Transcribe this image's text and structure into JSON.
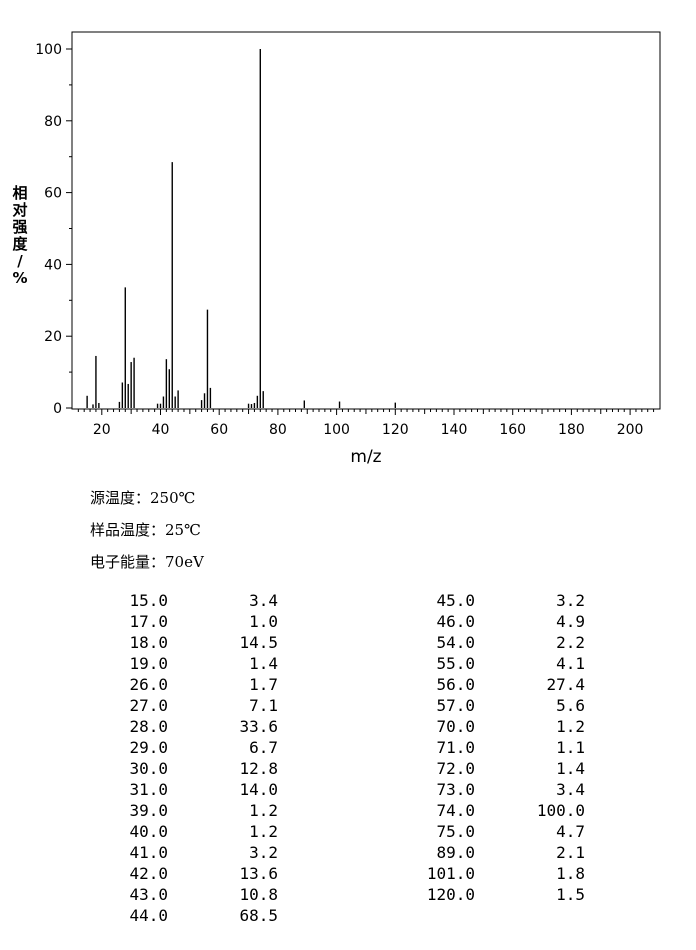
{
  "chart_data": {
    "type": "bar",
    "xlabel": "m/z",
    "ylabel": "相对强度/%",
    "xlim": [
      10,
      210
    ],
    "ylim": [
      0,
      105
    ],
    "x_ticks": [
      20,
      40,
      60,
      80,
      100,
      120,
      140,
      160,
      180,
      200
    ],
    "y_ticks": [
      0,
      20,
      40,
      60,
      80,
      100
    ],
    "grid": false,
    "series": [
      {
        "x": [
          15,
          17,
          18,
          19,
          26,
          27,
          28,
          29,
          30,
          31,
          39,
          40,
          41,
          42,
          43,
          44,
          45,
          46,
          54,
          55,
          56,
          57,
          70,
          71,
          72,
          73,
          74,
          75,
          89,
          101,
          120
        ],
        "values": [
          3.4,
          1.0,
          14.5,
          1.4,
          1.7,
          7.1,
          33.6,
          6.7,
          12.8,
          14.0,
          1.2,
          1.2,
          3.2,
          13.6,
          10.8,
          68.5,
          3.2,
          4.9,
          2.2,
          4.1,
          27.4,
          5.6,
          1.2,
          1.1,
          1.4,
          3.4,
          100.0,
          4.7,
          2.1,
          1.8,
          1.5
        ]
      }
    ]
  },
  "conditions": {
    "source_temp": "源温度：250℃",
    "sample_temp": "样品温度：25℃",
    "electron_energy": "电子能量：70eV"
  },
  "peak_table": {
    "left": [
      [
        "15.0",
        "3.4"
      ],
      [
        "17.0",
        "1.0"
      ],
      [
        "18.0",
        "14.5"
      ],
      [
        "19.0",
        "1.4"
      ],
      [
        "26.0",
        "1.7"
      ],
      [
        "27.0",
        "7.1"
      ],
      [
        "28.0",
        "33.6"
      ],
      [
        "29.0",
        "6.7"
      ],
      [
        "30.0",
        "12.8"
      ],
      [
        "31.0",
        "14.0"
      ],
      [
        "39.0",
        "1.2"
      ],
      [
        "40.0",
        "1.2"
      ],
      [
        "41.0",
        "3.2"
      ],
      [
        "42.0",
        "13.6"
      ],
      [
        "43.0",
        "10.8"
      ],
      [
        "44.0",
        "68.5"
      ]
    ],
    "right": [
      [
        "45.0",
        "3.2"
      ],
      [
        "46.0",
        "4.9"
      ],
      [
        "54.0",
        "2.2"
      ],
      [
        "55.0",
        "4.1"
      ],
      [
        "56.0",
        "27.4"
      ],
      [
        "57.0",
        "5.6"
      ],
      [
        "70.0",
        "1.2"
      ],
      [
        "71.0",
        "1.1"
      ],
      [
        "72.0",
        "1.4"
      ],
      [
        "73.0",
        "3.4"
      ],
      [
        "74.0",
        "100.0"
      ],
      [
        "75.0",
        "4.7"
      ],
      [
        "89.0",
        "2.1"
      ],
      [
        "101.0",
        "1.8"
      ],
      [
        "120.0",
        "1.5"
      ]
    ]
  }
}
